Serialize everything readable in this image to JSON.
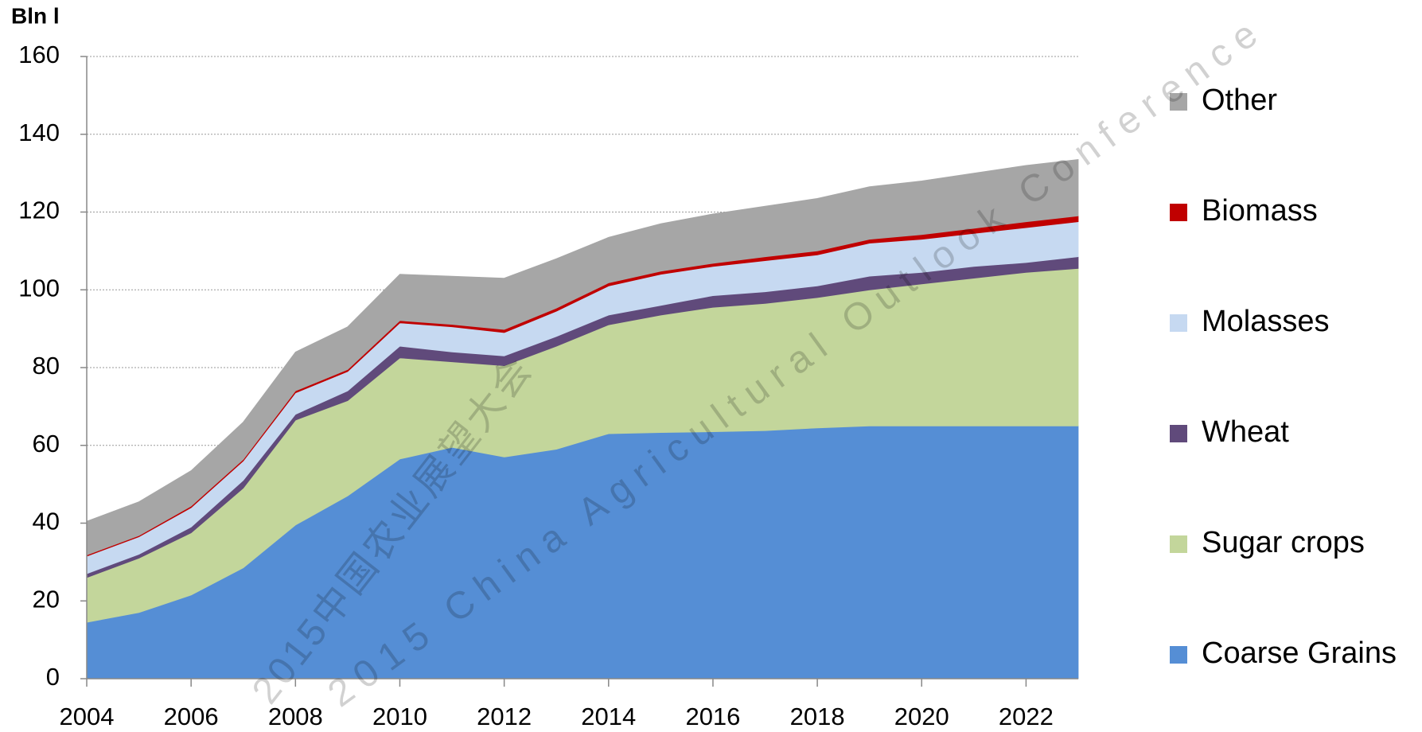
{
  "chart_data": {
    "type": "stacked_area",
    "y_label": "Bln l",
    "x": [
      2004,
      2005,
      2006,
      2007,
      2008,
      2009,
      2010,
      2011,
      2012,
      2013,
      2014,
      2015,
      2016,
      2017,
      2018,
      2019,
      2020,
      2021,
      2022,
      2023
    ],
    "series": [
      {
        "name": "Coarse Grains",
        "color": "#558ed5",
        "values": [
          14.5,
          17,
          21.5,
          28.5,
          39.5,
          47,
          56.5,
          59.5,
          57,
          59,
          63,
          63.3,
          63.5,
          63.8,
          64.5,
          65,
          65,
          65,
          65,
          65
        ]
      },
      {
        "name": "Sugar crops",
        "color": "#c3d69b",
        "values": [
          11.5,
          14,
          16,
          20.5,
          27,
          24.5,
          26,
          22,
          23.5,
          26.5,
          28,
          30.2,
          32,
          32.7,
          33.5,
          35,
          36.5,
          38,
          39.5,
          40.5
        ]
      },
      {
        "name": "Wheat",
        "color": "#604a7b",
        "values": [
          1,
          1,
          1.5,
          2,
          1.5,
          2.5,
          3,
          2.5,
          2.5,
          2.5,
          2.5,
          2.5,
          3,
          3,
          3,
          3.5,
          3,
          3,
          2.5,
          3
        ]
      },
      {
        "name": "Molasses",
        "color": "#c6d9f1",
        "values": [
          4.5,
          4.5,
          5,
          5,
          5.5,
          5,
          6,
          6.5,
          6,
          6.5,
          7.5,
          8,
          7.5,
          8,
          8,
          8.5,
          8.5,
          8.5,
          9,
          9
        ]
      },
      {
        "name": "Biomass",
        "color": "#c00000",
        "values": [
          0.3,
          0.3,
          0.4,
          0.4,
          0.5,
          0.5,
          0.6,
          0.6,
          0.8,
          0.8,
          0.8,
          0.8,
          0.8,
          1,
          1,
          1,
          1.2,
          1.3,
          1.5,
          1.5
        ]
      },
      {
        "name": "Other",
        "color": "#a6a6a6",
        "values": [
          8.7,
          8.7,
          9.1,
          9.6,
          10,
          11,
          11.9,
          12.4,
          13.2,
          12.7,
          11.7,
          12.2,
          12.7,
          13,
          13.5,
          13.5,
          13.8,
          14.2,
          14.5,
          14.5
        ]
      }
    ],
    "xlim": [
      2004,
      2023
    ],
    "xticks": [
      2004,
      2006,
      2008,
      2010,
      2012,
      2014,
      2016,
      2018,
      2020,
      2022
    ],
    "ylim": [
      0,
      160
    ],
    "yticks": [
      0,
      20,
      40,
      60,
      80,
      100,
      120,
      140,
      160
    ],
    "grid": true,
    "legend": "right",
    "watermark": [
      "2015中国农业展望大会",
      "2015 China Agricultural Outlook Conference"
    ]
  }
}
